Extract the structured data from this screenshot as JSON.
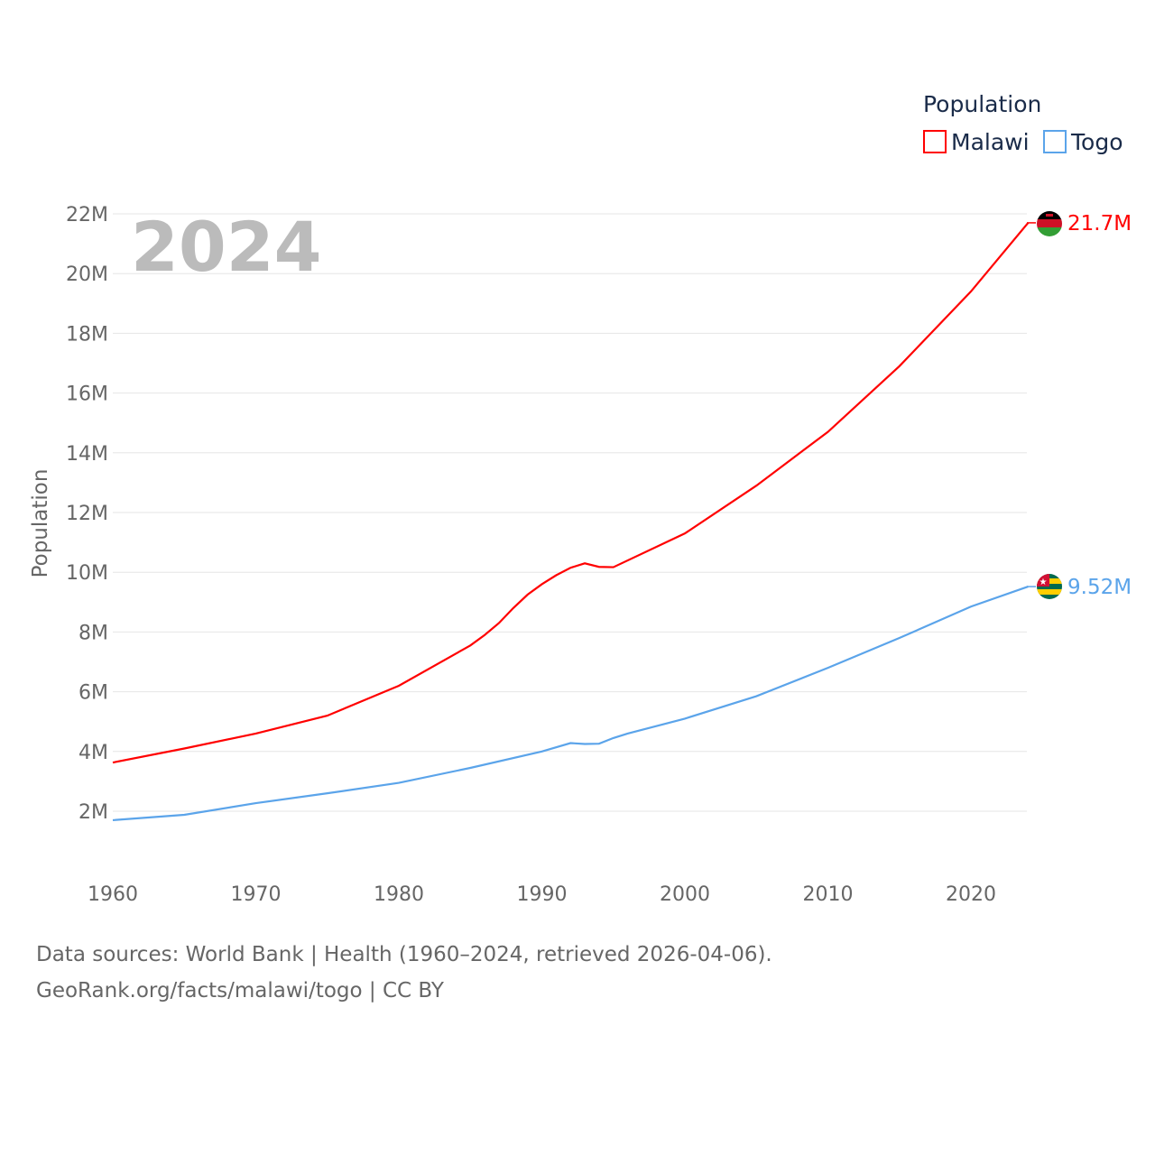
{
  "chart_data": {
    "type": "line",
    "year_label": "2024",
    "legend_title": "Population",
    "legend_position": "top-right",
    "ylabel": "Population",
    "xlabel": "",
    "xlim": [
      1960,
      2024
    ],
    "ylim": [
      0,
      22000000
    ],
    "x_ticks": [
      "1960",
      "1970",
      "1980",
      "1990",
      "2000",
      "2010",
      "2020"
    ],
    "y_ticks": [
      "2M",
      "4M",
      "6M",
      "8M",
      "10M",
      "12M",
      "14M",
      "16M",
      "18M",
      "20M",
      "22M"
    ],
    "grid": true,
    "series": [
      {
        "name": "Malawi",
        "color": "#ff0000",
        "end_label": "21.7M",
        "flag": "malawi-flag",
        "x": [
          1960,
          1965,
          1970,
          1975,
          1980,
          1985,
          1986,
          1987,
          1988,
          1989,
          1990,
          1991,
          1992,
          1993,
          1994,
          1995,
          2000,
          2005,
          2010,
          2015,
          2020,
          2024
        ],
        "values": [
          3.63,
          4.1,
          4.6,
          5.2,
          6.2,
          7.55,
          7.9,
          8.3,
          8.8,
          9.25,
          9.6,
          9.9,
          10.15,
          10.3,
          10.18,
          10.17,
          11.3,
          12.9,
          14.7,
          16.9,
          19.4,
          21.7
        ]
      },
      {
        "name": "Togo",
        "color": "#5ba4ea",
        "end_label": "9.52M",
        "flag": "togo-flag",
        "x": [
          1960,
          1965,
          1970,
          1975,
          1980,
          1985,
          1990,
          1992,
          1993,
          1994,
          1995,
          1996,
          2000,
          2005,
          2010,
          2015,
          2020,
          2024
        ],
        "values": [
          1.7,
          1.88,
          2.27,
          2.6,
          2.95,
          3.45,
          4.0,
          4.28,
          4.25,
          4.26,
          4.45,
          4.6,
          5.1,
          5.85,
          6.8,
          7.8,
          8.85,
          9.52
        ]
      }
    ]
  },
  "footer": {
    "line1": "Data sources: World Bank | Health (1960–2024, retrieved 2026-04-06).",
    "line2": "GeoRank.org/facts/malawi/togo | CC BY"
  }
}
